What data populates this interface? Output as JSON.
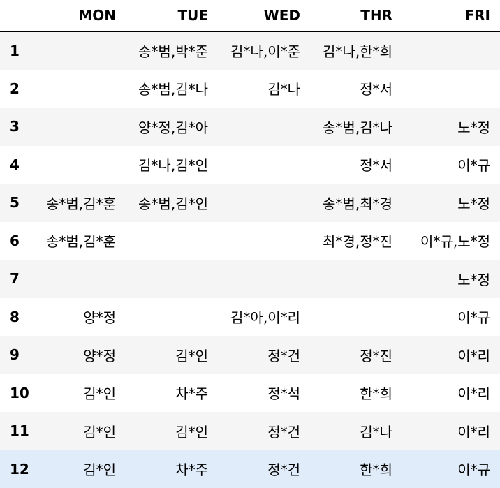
{
  "table": {
    "index_header": "",
    "columns": [
      "MON",
      "TUE",
      "WED",
      "THR",
      "FRI"
    ],
    "rows": [
      {
        "index": "1",
        "cells": [
          "",
          "송*범,박*준",
          "김*나,이*준",
          "김*나,한*희",
          ""
        ]
      },
      {
        "index": "2",
        "cells": [
          "",
          "송*범,김*나",
          "김*나",
          "정*서",
          ""
        ]
      },
      {
        "index": "3",
        "cells": [
          "",
          "양*정,김*아",
          "",
          "송*범,김*나",
          "노*정"
        ]
      },
      {
        "index": "4",
        "cells": [
          "",
          "김*나,김*인",
          "",
          "정*서",
          "이*규"
        ]
      },
      {
        "index": "5",
        "cells": [
          "송*범,김*훈",
          "송*범,김*인",
          "",
          "송*범,최*경",
          "노*정"
        ]
      },
      {
        "index": "6",
        "cells": [
          "송*범,김*훈",
          "",
          "",
          "최*경,정*진",
          "이*규,노*정"
        ]
      },
      {
        "index": "7",
        "cells": [
          "",
          "",
          "",
          "",
          "노*정"
        ]
      },
      {
        "index": "8",
        "cells": [
          "양*정",
          "",
          "김*아,이*리",
          "",
          "이*규"
        ]
      },
      {
        "index": "9",
        "cells": [
          "양*정",
          "김*인",
          "정*건",
          "정*진",
          "이*리"
        ]
      },
      {
        "index": "10",
        "cells": [
          "김*인",
          "차*주",
          "정*석",
          "한*희",
          "이*리"
        ]
      },
      {
        "index": "11",
        "cells": [
          "김*인",
          "김*인",
          "정*건",
          "김*나",
          "이*리"
        ]
      },
      {
        "index": "12",
        "cells": [
          "김*인",
          "차*주",
          "정*건",
          "한*희",
          "이*규"
        ]
      }
    ],
    "highlighted_row_index": "12",
    "colors": {
      "stripe": "#f5f5f5",
      "highlight": "#e1ecfa",
      "header_rule": "#000000"
    }
  }
}
